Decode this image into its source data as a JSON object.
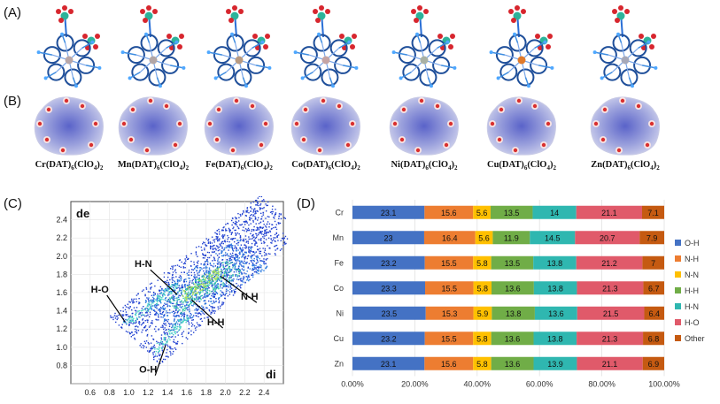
{
  "panels": {
    "a": "(A)",
    "b": "(B)",
    "c": "(C)",
    "d": "(D)"
  },
  "complexes": [
    {
      "metal": "Cr",
      "cap_pre": "Cr(DAT)",
      "sub1": "6",
      "cap_mid": "(ClO",
      "sub2": "4",
      "cap_post": ")",
      "sub3": "2",
      "center_color": "#b9a7a7"
    },
    {
      "metal": "Mn",
      "cap_pre": "Mn(DAT)",
      "sub1": "6",
      "cap_mid": "(ClO",
      "sub2": "4",
      "cap_post": ")",
      "sub3": "2",
      "center_color": "#b2a6a6"
    },
    {
      "metal": "Fe",
      "cap_pre": "Fe(DAT)",
      "sub1": "6",
      "cap_mid": "(ClO",
      "sub2": "4",
      "cap_post": ")",
      "sub3": "2",
      "center_color": "#b89a80"
    },
    {
      "metal": "Co",
      "cap_pre": "Co(DAT)",
      "sub1": "6",
      "cap_mid": "(ClO",
      "sub2": "4",
      "cap_post": ")",
      "sub3": "2",
      "center_color": "#c5a4a4"
    },
    {
      "metal": "Ni",
      "cap_pre": "Ni(DAT)",
      "sub1": "6",
      "cap_mid": "(ClO",
      "sub2": "4",
      "cap_post": ")",
      "sub3": "2",
      "center_color": "#a9b1a4"
    },
    {
      "metal": "Cu",
      "cap_pre": "Cu(DAT)",
      "sub1": "6",
      "cap_mid": "(ClO",
      "sub2": "4",
      "cap_post": ")",
      "sub3": "2",
      "center_color": "#e07a2a"
    },
    {
      "metal": "Zn",
      "cap_pre": "Zn(DAT)",
      "sub1": "6",
      "cap_mid": "(ClO",
      "sub2": "4",
      "cap_post": ")",
      "sub3": "2",
      "center_color": "#a6a8b8"
    }
  ],
  "chart_data": [
    {
      "type": "scatter",
      "panel": "(C)",
      "xlabel": "di",
      "ylabel": "de",
      "xlim": [
        0.4,
        2.6
      ],
      "ylim": [
        0.6,
        2.6
      ],
      "x_ticks": [
        "0.6",
        "0.8",
        "1.0",
        "1.2",
        "1.4",
        "1.6",
        "1.8",
        "2.0",
        "2.2",
        "2.4"
      ],
      "y_ticks": [
        "0.8",
        "1.0",
        "1.2",
        "1.4",
        "1.6",
        "1.8",
        "2.0",
        "2.2",
        "2.4"
      ],
      "annotations": [
        {
          "text": "H-N",
          "x": 1.15,
          "y": 1.88,
          "target_x": 1.5,
          "target_y": 1.58
        },
        {
          "text": "H-O",
          "x": 0.7,
          "y": 1.6,
          "target_x": 0.96,
          "target_y": 1.28
        },
        {
          "text": "N-H",
          "x": 2.25,
          "y": 1.52,
          "target_x": 1.95,
          "target_y": 1.78
        },
        {
          "text": "H-H",
          "x": 1.9,
          "y": 1.24,
          "target_x": 1.65,
          "target_y": 1.52
        },
        {
          "text": "O-H",
          "x": 1.2,
          "y": 0.72,
          "target_x": 1.38,
          "target_y": 1.02
        }
      ]
    },
    {
      "type": "bar",
      "panel": "(D)",
      "stacked": true,
      "orientation": "horizontal",
      "categories": [
        "Cr",
        "Mn",
        "Fe",
        "Co",
        "Ni",
        "Cu",
        "Zn"
      ],
      "x_ticks": [
        "0.00%",
        "20.00%",
        "40.00%",
        "60.00%",
        "80.00%",
        "100.00%"
      ],
      "xlim": [
        0,
        100
      ],
      "legend_position": "right",
      "series": [
        {
          "name": "O-H",
          "color": "#4472c4",
          "values": [
            23.1,
            23,
            23.2,
            23.3,
            23.5,
            23.2,
            23.1
          ]
        },
        {
          "name": "N-H",
          "color": "#ed7d31",
          "values": [
            15.6,
            16.4,
            15.5,
            15.5,
            15.3,
            15.5,
            15.6
          ]
        },
        {
          "name": "N-N",
          "color": "#ffc000",
          "values": [
            5.6,
            5.6,
            5.8,
            5.8,
            5.9,
            5.8,
            5.8
          ]
        },
        {
          "name": "H-H",
          "color": "#70ad47",
          "values": [
            13.5,
            11.9,
            13.5,
            13.6,
            13.8,
            13.6,
            13.6
          ]
        },
        {
          "name": "H-N",
          "color": "#2fb7b0",
          "values": [
            14,
            14.5,
            13.8,
            13.8,
            13.6,
            13.8,
            13.9
          ]
        },
        {
          "name": "H-O",
          "color": "#e05a6a",
          "values": [
            21.1,
            20.7,
            21.2,
            21.3,
            21.5,
            21.3,
            21.1
          ]
        },
        {
          "name": "Other",
          "color": "#c55a11",
          "values": [
            7.1,
            7.9,
            7,
            6.7,
            6.4,
            6.8,
            6.9
          ]
        }
      ]
    }
  ]
}
